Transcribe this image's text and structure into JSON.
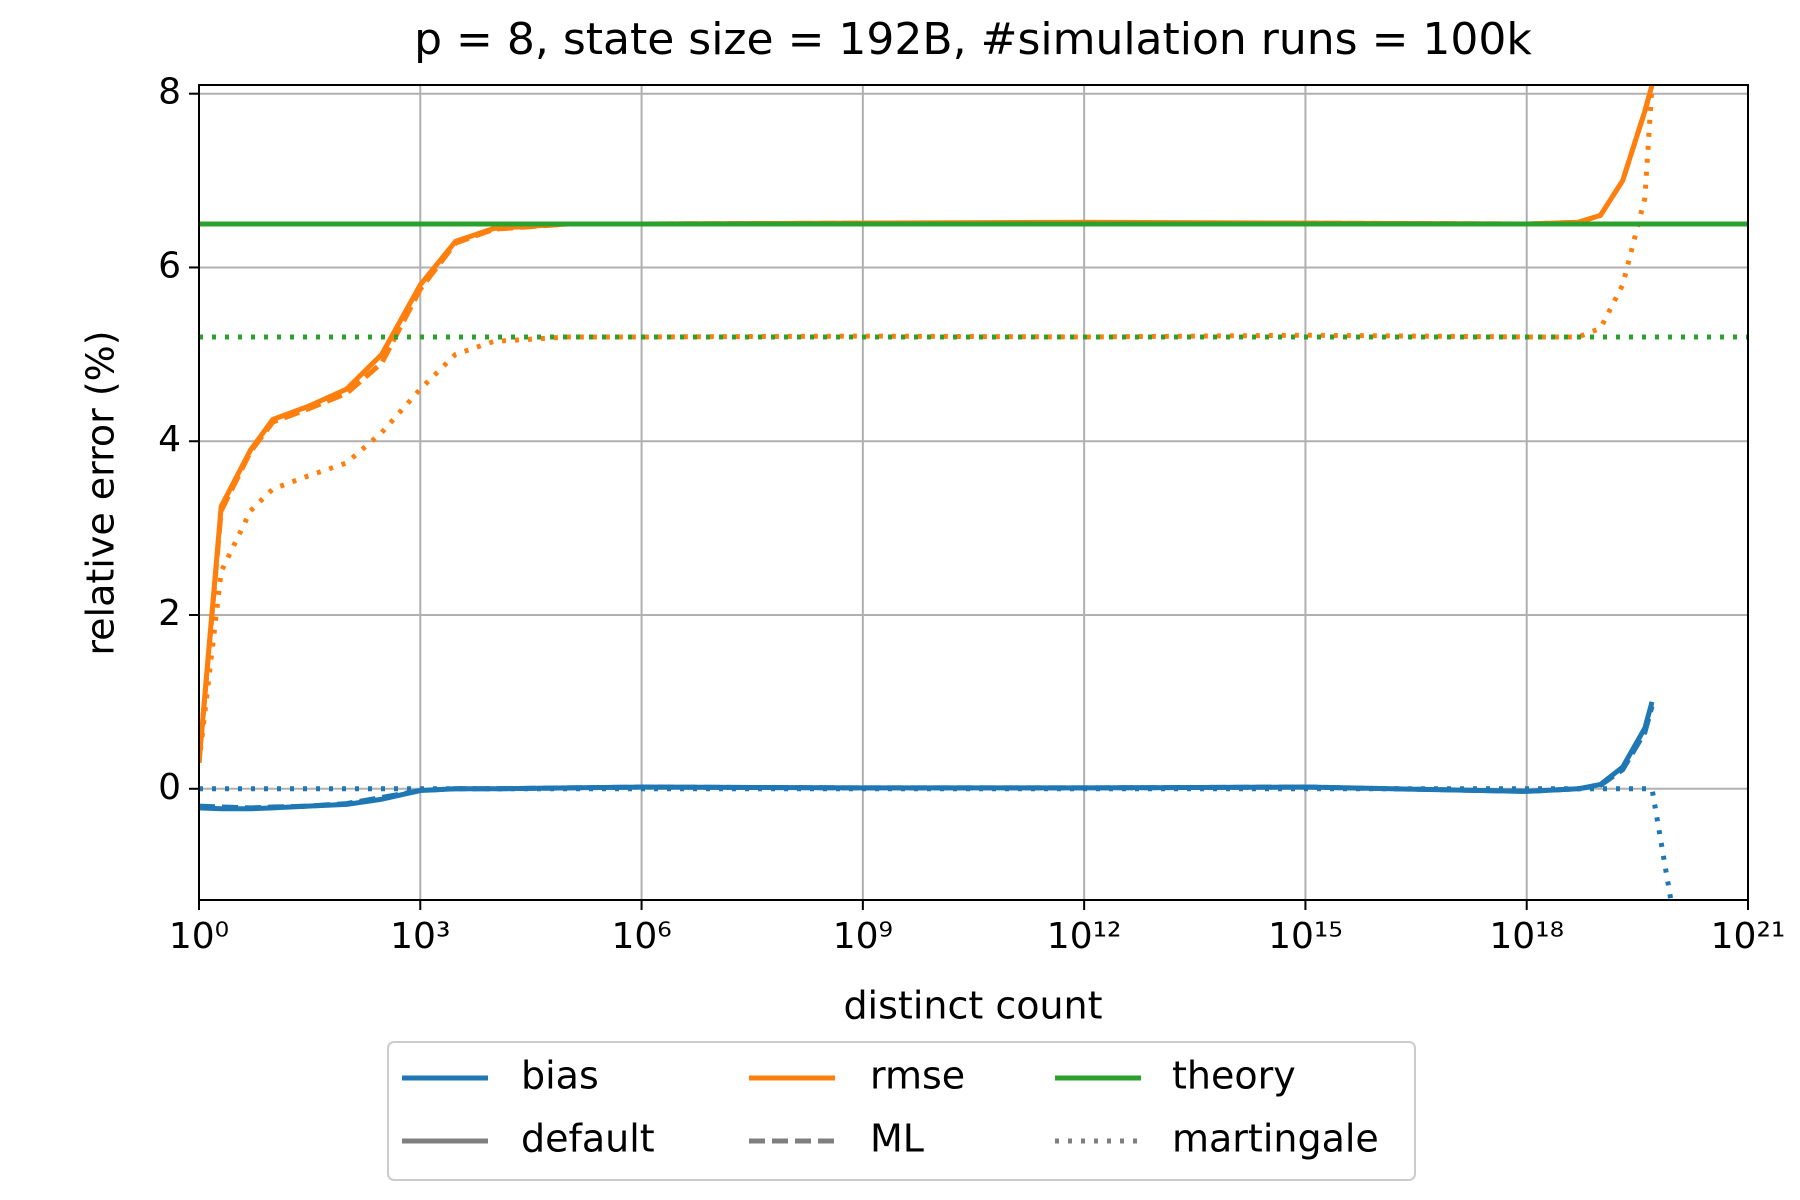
{
  "chart_data": {
    "type": "line",
    "title": "p = 8, state size = 192B, #simulation runs = 100k",
    "xlabel": "distinct count",
    "ylabel": "relative error (%)",
    "xscale": "log",
    "grid": true,
    "xlim": [
      1,
      1e+21
    ],
    "ylim": [
      -1.28,
      8.1
    ],
    "xticks": [
      {
        "value": 1,
        "label": "10⁰"
      },
      {
        "value": 1000.0,
        "label": "10³"
      },
      {
        "value": 1000000.0,
        "label": "10⁶"
      },
      {
        "value": 1000000000.0,
        "label": "10⁹"
      },
      {
        "value": 1000000000000.0,
        "label": "10¹²"
      },
      {
        "value": 1000000000000000.0,
        "label": "10¹⁵"
      },
      {
        "value": 1e+18,
        "label": "10¹⁸"
      },
      {
        "value": 1e+21,
        "label": "10²¹"
      }
    ],
    "yticks": [
      0,
      2,
      4,
      6,
      8
    ],
    "legend": "lower center",
    "styles": [
      {
        "name": "default",
        "dash": "solid",
        "color": "#7f7f7f"
      },
      {
        "name": "ML",
        "dash": "dashed",
        "color": "#7f7f7f"
      },
      {
        "name": "martingale",
        "dash": "dotted",
        "color": "#7f7f7f"
      }
    ],
    "x": [
      1,
      2,
      5,
      10,
      30,
      100,
      300,
      1000,
      3000,
      10000.0,
      100000.0,
      1000000.0,
      1000000000.0,
      1000000000000.0,
      1000000000000000.0,
      1e+18,
      5e+18,
      1e+19,
      2e+19,
      4e+19,
      5e+19,
      9e+19,
      1e+21
    ],
    "series": [
      {
        "name": "bias",
        "color": "#1f77b4",
        "values": {
          "default": [
            -0.22,
            -0.23,
            -0.23,
            -0.22,
            -0.2,
            -0.18,
            -0.12,
            -0.02,
            0,
            0,
            0.01,
            0.02,
            0.01,
            0.01,
            0.02,
            -0.03,
            0,
            0.05,
            0.25,
            0.7,
            1.0,
            null,
            null
          ],
          "ML": [
            -0.2,
            -0.21,
            -0.22,
            -0.21,
            -0.2,
            -0.17,
            -0.1,
            -0.02,
            0,
            0,
            0.01,
            0.02,
            0.01,
            0.01,
            0.02,
            -0.03,
            0,
            0.04,
            0.22,
            0.65,
            0.95,
            null,
            null
          ],
          "martingale": [
            0,
            0,
            0,
            0,
            0,
            0,
            0,
            0,
            0,
            0,
            0,
            0,
            0,
            0,
            0,
            0,
            0,
            0,
            0,
            0,
            0,
            -1.28,
            null
          ]
        }
      },
      {
        "name": "rmse",
        "color": "#ff7f0e",
        "values": {
          "default": [
            0.3,
            3.25,
            3.9,
            4.25,
            4.4,
            4.6,
            5.0,
            5.8,
            6.3,
            6.45,
            6.5,
            6.5,
            6.51,
            6.52,
            6.51,
            6.5,
            6.52,
            6.6,
            7.0,
            7.8,
            8.1,
            null,
            null
          ],
          "ML": [
            0.3,
            3.2,
            3.88,
            4.22,
            4.37,
            4.55,
            4.9,
            5.75,
            6.28,
            6.44,
            6.5,
            6.5,
            6.51,
            6.51,
            6.51,
            6.5,
            6.52,
            6.6,
            7.0,
            7.8,
            8.1,
            null,
            null
          ],
          "martingale": [
            0.3,
            2.5,
            3.2,
            3.45,
            3.6,
            3.75,
            4.1,
            4.6,
            5.0,
            5.15,
            5.2,
            5.2,
            5.21,
            5.2,
            5.22,
            5.2,
            5.2,
            5.3,
            5.8,
            6.8,
            8.1,
            null,
            null
          ]
        }
      },
      {
        "name": "theory",
        "color": "#2ca02c",
        "values": {
          "default": [
            6.5,
            6.5,
            6.5,
            6.5,
            6.5,
            6.5,
            6.5,
            6.5,
            6.5,
            6.5,
            6.5,
            6.5,
            6.5,
            6.5,
            6.5,
            6.5,
            6.5,
            6.5,
            6.5,
            6.5,
            6.5,
            6.5,
            6.5
          ],
          "ML": [
            6.5,
            6.5,
            6.5,
            6.5,
            6.5,
            6.5,
            6.5,
            6.5,
            6.5,
            6.5,
            6.5,
            6.5,
            6.5,
            6.5,
            6.5,
            6.5,
            6.5,
            6.5,
            6.5,
            6.5,
            6.5,
            6.5,
            6.5
          ],
          "martingale": [
            5.2,
            5.2,
            5.2,
            5.2,
            5.2,
            5.2,
            5.2,
            5.2,
            5.2,
            5.2,
            5.2,
            5.2,
            5.2,
            5.2,
            5.2,
            5.2,
            5.2,
            5.2,
            5.2,
            5.2,
            5.2,
            5.2,
            5.2
          ]
        }
      }
    ]
  }
}
